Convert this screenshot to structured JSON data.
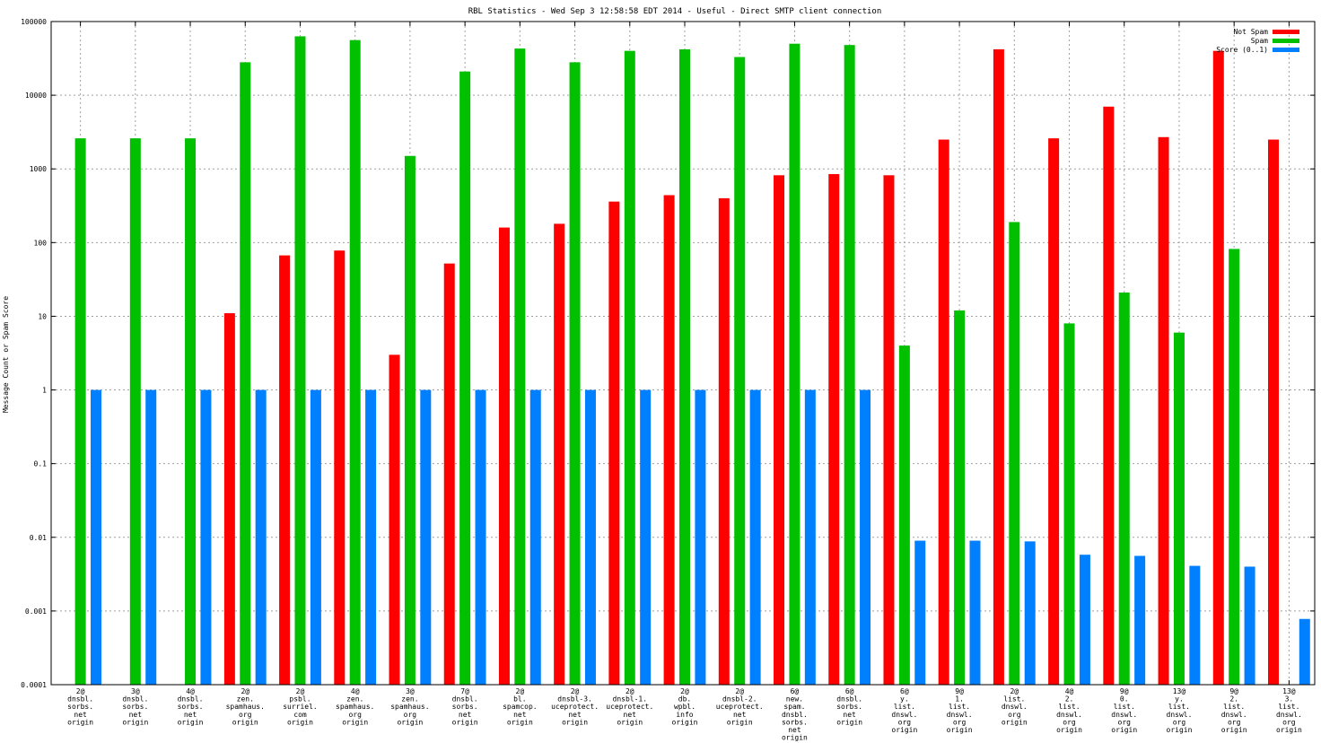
{
  "chart_data": {
    "type": "bar",
    "title": "RBL Statistics - Wed Sep  3 12:58:58 EDT 2014 - Useful - Direct SMTP client connection",
    "xlabel": "",
    "ylabel": "Message Count or Spam Score",
    "yscale": "log",
    "ylim": [
      0.0001,
      100000
    ],
    "yticks": [
      {
        "value": 100000,
        "label": "100000"
      },
      {
        "value": 10000,
        "label": "10000"
      },
      {
        "value": 1000,
        "label": "1000"
      },
      {
        "value": 100,
        "label": "100"
      },
      {
        "value": 10,
        "label": "10"
      },
      {
        "value": 1,
        "label": "1"
      },
      {
        "value": 0.1,
        "label": "0.1"
      },
      {
        "value": 0.01,
        "label": "0.01"
      },
      {
        "value": 0.001,
        "label": "0.001"
      },
      {
        "value": 0.0001,
        "label": "0.0001"
      }
    ],
    "grid": true,
    "legend_position": "top-right",
    "categories": [
      [
        "2@",
        "dnsbl.",
        "sorbs.",
        "net",
        "origin"
      ],
      [
        "3@",
        "dnsbl.",
        "sorbs.",
        "net",
        "origin"
      ],
      [
        "4@",
        "dnsbl.",
        "sorbs.",
        "net",
        "origin"
      ],
      [
        "2@",
        "zen.",
        "spamhaus.",
        "org",
        "origin"
      ],
      [
        "2@",
        "psbl.",
        "surriel.",
        "com",
        "origin"
      ],
      [
        "4@",
        "zen.",
        "spamhaus.",
        "org",
        "origin"
      ],
      [
        "3@",
        "zen.",
        "spamhaus.",
        "org",
        "origin"
      ],
      [
        "7@",
        "dnsbl.",
        "sorbs.",
        "net",
        "origin"
      ],
      [
        "2@",
        "bl.",
        "spamcop.",
        "net",
        "origin"
      ],
      [
        "2@",
        "dnsbl-3.",
        "uceprotect.",
        "net",
        "origin"
      ],
      [
        "2@",
        "dnsbl-1.",
        "uceprotect.",
        "net",
        "origin"
      ],
      [
        "2@",
        "db.",
        "wpbl.",
        "info",
        "origin"
      ],
      [
        "2@",
        "dnsbl-2.",
        "uceprotect.",
        "net",
        "origin"
      ],
      [
        "6@",
        "new.",
        "spam.",
        "dnsbl.",
        "sorbs.",
        "net",
        "origin"
      ],
      [
        "6@",
        "dnsbl.",
        "sorbs.",
        "net",
        "origin"
      ],
      [
        "6@",
        "y.",
        "list.",
        "dnswl.",
        "org",
        "origin"
      ],
      [
        "9@",
        "1.",
        "list.",
        "dnswl.",
        "org",
        "origin"
      ],
      [
        "2@",
        "list.",
        "dnswl.",
        "org",
        "origin"
      ],
      [
        "4@",
        "2.",
        "list.",
        "dnswl.",
        "org",
        "origin"
      ],
      [
        "9@",
        "0.",
        "list.",
        "dnswl.",
        "org",
        "origin"
      ],
      [
        "13@",
        "y.",
        "list.",
        "dnswl.",
        "org",
        "origin"
      ],
      [
        "9@",
        "2.",
        "list.",
        "dnswl.",
        "org",
        "origin"
      ],
      [
        "13@",
        "3.",
        "list.",
        "dnswl.",
        "org",
        "origin"
      ]
    ],
    "series": [
      {
        "name": "Not Spam",
        "color": "#ff0000",
        "values": [
          null,
          null,
          null,
          11,
          67,
          78,
          3,
          52,
          160,
          180,
          360,
          440,
          400,
          820,
          850,
          820,
          2500,
          42000,
          2600,
          7000,
          2700,
          40000,
          2500
        ]
      },
      {
        "name": "Spam",
        "color": "#00c000",
        "values": [
          2600,
          2600,
          2600,
          28000,
          63000,
          56000,
          1500,
          21000,
          43000,
          28000,
          40000,
          42000,
          33000,
          50000,
          48000,
          4,
          12,
          190,
          8,
          21,
          6,
          82,
          null
        ]
      },
      {
        "name": "Score (0..1)",
        "color": "#0080ff",
        "values": [
          1,
          1,
          1,
          1,
          1,
          1,
          1,
          1,
          1,
          1,
          1,
          1,
          1,
          1,
          1,
          0.009,
          0.009,
          0.0088,
          0.0058,
          0.0056,
          0.0041,
          0.004,
          0.00078
        ]
      }
    ]
  }
}
